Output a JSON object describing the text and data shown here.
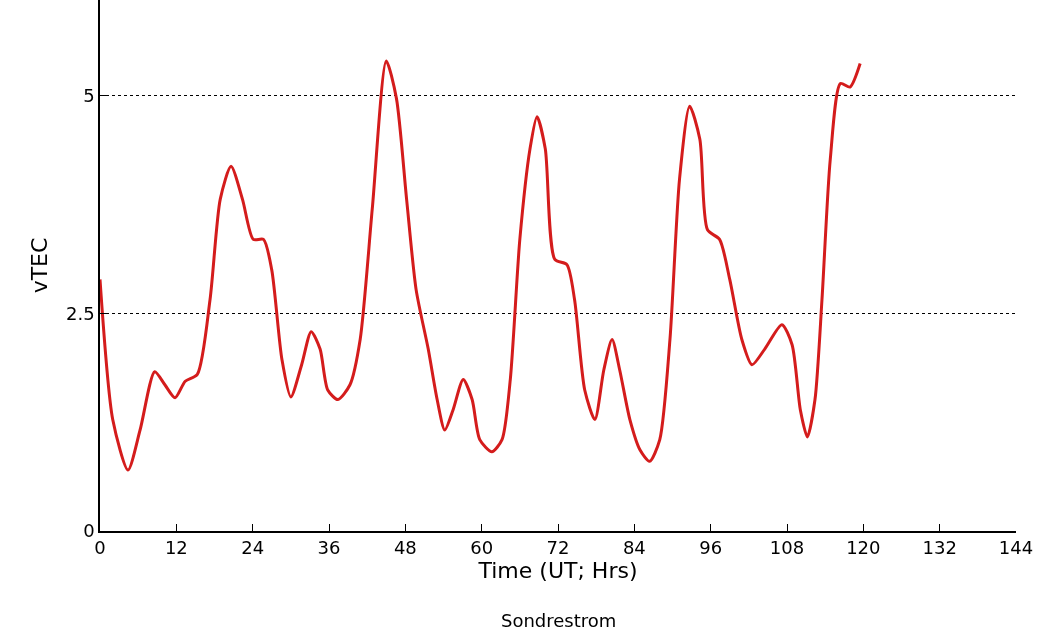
{
  "chart_data": {
    "type": "line",
    "xlabel": "Time (UT; Hrs)",
    "ylabel": "vTEC",
    "annotations": [
      "Sondrestrom"
    ],
    "x": [
      0,
      2,
      4.4,
      6.3,
      8.6,
      10.2,
      11.8,
      13.4,
      15.3,
      17.3,
      18.9,
      20.6,
      22.4,
      24.1,
      25.7,
      27.0,
      28.6,
      30.0,
      31.7,
      33.2,
      34.6,
      35.8,
      37.4,
      39.3,
      40.9,
      42.8,
      45.0,
      46.6,
      48.2,
      49.7,
      51.6,
      53.0,
      54.2,
      55.5,
      57.1,
      58.5,
      59.7,
      61.6,
      63.2,
      64.5,
      66.0,
      67.6,
      68.7,
      70.0,
      71.5,
      73.4,
      74.6,
      76.2,
      77.8,
      79.2,
      80.5,
      81.7,
      83.3,
      84.9,
      86.4,
      88.0,
      89.6,
      91.1,
      92.7,
      94.3,
      95.5,
      97.4,
      99.0,
      100.9,
      102.5,
      104.5,
      107.2,
      108.8,
      110.1,
      111.2,
      112.4,
      113.5,
      114.8,
      116.4,
      117.9,
      119.5
    ],
    "series": [
      {
        "color": "#d41c1c",
        "values": [
          2.89,
          1.28,
          0.7,
          1.16,
          1.83,
          1.68,
          1.53,
          1.72,
          1.8,
          2.66,
          3.81,
          4.19,
          3.81,
          3.35,
          3.35,
          3.0,
          1.97,
          1.54,
          1.91,
          2.29,
          2.09,
          1.62,
          1.51,
          1.68,
          2.2,
          3.7,
          5.4,
          4.97,
          3.81,
          2.77,
          2.09,
          1.51,
          1.16,
          1.39,
          1.74,
          1.51,
          1.05,
          0.91,
          1.05,
          1.74,
          3.35,
          4.39,
          4.76,
          4.39,
          3.12,
          3.06,
          2.66,
          1.62,
          1.28,
          1.85,
          2.2,
          1.85,
          1.28,
          0.93,
          0.8,
          1.05,
          2.2,
          4.04,
          4.88,
          4.5,
          3.46,
          3.35,
          2.89,
          2.2,
          1.91,
          2.09,
          2.37,
          2.14,
          1.39,
          1.08,
          1.51,
          2.66,
          4.27,
          5.14,
          5.1,
          5.37
        ]
      }
    ],
    "xlim": [
      0,
      144
    ],
    "xticks": [
      0,
      12,
      24,
      36,
      48,
      60,
      72,
      84,
      96,
      108,
      120,
      132,
      144
    ],
    "ylim": [
      0,
      6.1
    ],
    "yticks": [
      0,
      2.5,
      5
    ],
    "grid": "y",
    "marker": "none",
    "line_style": "solid"
  }
}
